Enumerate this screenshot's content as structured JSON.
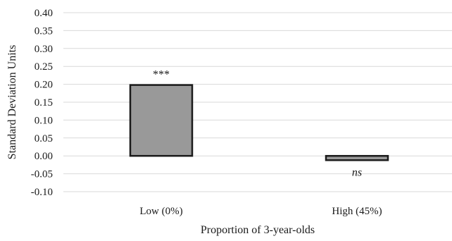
{
  "chart_data": {
    "type": "bar",
    "categories": [
      "Low (0%)",
      "High (45%)"
    ],
    "values": [
      0.198,
      -0.012
    ],
    "annotations": [
      "***",
      "ns"
    ],
    "xlabel": "Proportion of 3-year-olds",
    "ylabel": "Standard Deviation Units",
    "ylim": [
      -0.1,
      0.4
    ],
    "yticks": [
      0.4,
      0.35,
      0.3,
      0.25,
      0.2,
      0.15,
      0.1,
      0.05,
      0.0,
      -0.05,
      -0.1
    ],
    "ytick_labels": [
      "0.40",
      "0.35",
      "0.30",
      "0.25",
      "0.20",
      "0.15",
      "0.10",
      "0.05",
      "0.00",
      "-0.05",
      "-0.10"
    ],
    "grid": true,
    "colors": {
      "bar_fill": "#999999",
      "bar_stroke": "#1a1a1a",
      "grid": "#d9d9d9"
    }
  }
}
